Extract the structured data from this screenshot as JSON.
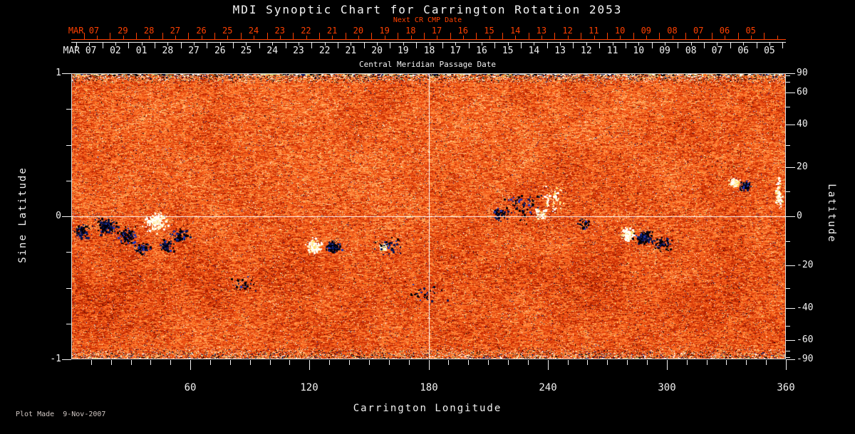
{
  "title": "MDI Synoptic Chart for Carrington Rotation 2053",
  "credit": "Plot Made  9-Nov-2007",
  "colors": {
    "background": "#000000",
    "foreground": "#f2f2f2",
    "red_axis": "#ff4000",
    "credit_text": "#cfc6c2"
  },
  "top_axis_next_cr": {
    "caption": "Next CR CMP Date",
    "edge_label": "MAR 07",
    "day_labels": [
      "29",
      "28",
      "27",
      "26",
      "25",
      "24",
      "23",
      "22",
      "21",
      "20",
      "19",
      "18",
      "17",
      "16",
      "15",
      "14",
      "13",
      "12",
      "11",
      "10",
      "09",
      "08",
      "07",
      "06",
      "05"
    ]
  },
  "top_axis_cmp": {
    "caption": "Central Meridian Passage Date",
    "edge_label": "MAR 07",
    "day_labels": [
      "02",
      "01",
      "28",
      "27",
      "26",
      "25",
      "24",
      "23",
      "22",
      "21",
      "20",
      "19",
      "18",
      "17",
      "16",
      "15",
      "14",
      "13",
      "12",
      "11",
      "10",
      "09",
      "08",
      "07",
      "06",
      "05"
    ]
  },
  "left_axis": {
    "title": "Sine Latitude",
    "range": [
      -1,
      1
    ],
    "major_tick_values": [
      1,
      0,
      -1
    ],
    "major_tick_labels": [
      "1",
      "0",
      "-1"
    ],
    "minor_step": 0.25
  },
  "right_axis": {
    "title": "Latitude",
    "scale": "sine",
    "labeled_values": [
      90,
      60,
      40,
      20,
      0,
      -20,
      -40,
      -60,
      -90
    ],
    "minor_step_deg": 10
  },
  "bottom_axis": {
    "title": "Carrington Longitude",
    "range": [
      0,
      360
    ],
    "labeled_values": [
      60,
      120,
      180,
      240,
      300,
      360
    ],
    "minor_step_deg": 10
  },
  "chart_data": {
    "type": "heatmap",
    "description": "MDI solar magnetogram synoptic map for Carrington rotation 2053: orange-red noisy photospheric field, bipolar active regions (white/yellow = positive polarity, black/navy = negative polarity), high-contrast speckle bands at both poles, and white reference crosshairs at Carrington longitude 180 and latitude 0.",
    "x_axis": {
      "label": "Carrington Longitude",
      "range": [
        0,
        360
      ]
    },
    "y_axis_left": {
      "label": "Sine Latitude",
      "range": [
        -1,
        1
      ]
    },
    "y_axis_right": {
      "label": "Latitude",
      "range": [
        -90,
        90
      ]
    },
    "crosshair": {
      "longitude": 180,
      "sine_latitude": 0
    },
    "palette": {
      "stops": [
        [
          0,
          "#5a0a00"
        ],
        [
          0.18,
          "#8c1400"
        ],
        [
          0.35,
          "#c42800"
        ],
        [
          0.5,
          "#e84912"
        ],
        [
          0.65,
          "#ff6d1f"
        ],
        [
          0.8,
          "#ff9046"
        ],
        [
          0.92,
          "#ffb870"
        ],
        [
          1,
          "#ffe2b0"
        ]
      ],
      "bright_speckle": [
        "#ffffff",
        "#ffeec2",
        "#ffe070",
        "#d6de74"
      ],
      "dark_speckle": [
        "#000000",
        "#0b1550",
        "#1b2e9e",
        "#000018"
      ],
      "edge_streaks": [
        "#ffffff",
        "#000000",
        "#101c64",
        "#ffd9a0",
        "#ff7a1e",
        "#ccd47a",
        "#ffffff",
        "#000000"
      ],
      "positive": [
        "#ffffff",
        "#fff0bf",
        "#ffdf6e"
      ],
      "negative": [
        "#000008",
        "#0a1656",
        "#2238b4"
      ]
    },
    "noise": {
      "seed": 20531,
      "refresh_prob": 0.45,
      "dark_speckle_prob": 0.013,
      "bright_speckle_prob": 0.023,
      "top_band_rows": 14,
      "bottom_band_rows": 15
    },
    "active_regions": [
      {
        "lon": 4.3,
        "sin_lat": -0.109,
        "rx": 8,
        "ry": 7,
        "polarity": "negative",
        "strength": 1.0
      },
      {
        "lon": 17.2,
        "sin_lat": -0.065,
        "rx": 13,
        "ry": 10,
        "polarity": "negative",
        "strength": 1.3
      },
      {
        "lon": 27.6,
        "sin_lat": -0.134,
        "rx": 11,
        "ry": 9,
        "polarity": "negative",
        "strength": 1.1
      },
      {
        "lon": 42.4,
        "sin_lat": -0.035,
        "rx": 14,
        "ry": 12,
        "polarity": "positive",
        "strength": 1.6
      },
      {
        "lon": 34.8,
        "sin_lat": -0.214,
        "rx": 9,
        "ry": 7,
        "polarity": "negative",
        "strength": 0.8
      },
      {
        "lon": 54.2,
        "sin_lat": -0.134,
        "rx": 10,
        "ry": 8,
        "polarity": "negative",
        "strength": 0.9
      },
      {
        "lon": 47.4,
        "sin_lat": -0.204,
        "rx": 8,
        "ry": 6,
        "polarity": "negative",
        "strength": 0.7
      },
      {
        "lon": 86.1,
        "sin_lat": -0.468,
        "rx": 16,
        "ry": 10,
        "polarity": "negative",
        "strength": 0.3
      },
      {
        "lon": 122.0,
        "sin_lat": -0.204,
        "rx": 8,
        "ry": 8,
        "polarity": "positive",
        "strength": 1.2
      },
      {
        "lon": 131.7,
        "sin_lat": -0.209,
        "rx": 9,
        "ry": 7,
        "polarity": "negative",
        "strength": 1.4
      },
      {
        "lon": 156.9,
        "sin_lat": -0.214,
        "rx": 4,
        "ry": 4,
        "polarity": "positive",
        "strength": 1.0
      },
      {
        "lon": 160.4,
        "sin_lat": -0.204,
        "rx": 16,
        "ry": 12,
        "polarity": "negative",
        "strength": 0.5
      },
      {
        "lon": 179.5,
        "sin_lat": -0.542,
        "rx": 22,
        "ry": 12,
        "polarity": "negative",
        "strength": 0.35
      },
      {
        "lon": 215.4,
        "sin_lat": 0.02,
        "rx": 10,
        "ry": 8,
        "polarity": "negative",
        "strength": 0.5
      },
      {
        "lon": 227.2,
        "sin_lat": 0.08,
        "rx": 22,
        "ry": 18,
        "polarity": "negative",
        "strength": 0.9
      },
      {
        "lon": 242.3,
        "sin_lat": 0.129,
        "rx": 14,
        "ry": 16,
        "polarity": "positive",
        "strength": 0.6
      },
      {
        "lon": 236.9,
        "sin_lat": 0.02,
        "rx": 8,
        "ry": 6,
        "polarity": "positive",
        "strength": 0.5
      },
      {
        "lon": 257.3,
        "sin_lat": -0.045,
        "rx": 10,
        "ry": 8,
        "polarity": "negative",
        "strength": 0.4
      },
      {
        "lon": 280.3,
        "sin_lat": -0.124,
        "rx": 8,
        "ry": 7,
        "polarity": "positive",
        "strength": 1.1
      },
      {
        "lon": 288.6,
        "sin_lat": -0.144,
        "rx": 10,
        "ry": 8,
        "polarity": "negative",
        "strength": 1.2
      },
      {
        "lon": 297.5,
        "sin_lat": -0.194,
        "rx": 11,
        "ry": 8,
        "polarity": "negative",
        "strength": 0.6
      },
      {
        "lon": 334.1,
        "sin_lat": 0.244,
        "rx": 6,
        "ry": 5,
        "polarity": "positive",
        "strength": 0.9
      },
      {
        "lon": 339.2,
        "sin_lat": 0.214,
        "rx": 6,
        "ry": 5,
        "polarity": "negative",
        "strength": 0.8
      },
      {
        "lon": 356.4,
        "sin_lat": 0.159,
        "rx": 4,
        "ry": 18,
        "polarity": "positive",
        "strength": 0.9
      }
    ]
  }
}
